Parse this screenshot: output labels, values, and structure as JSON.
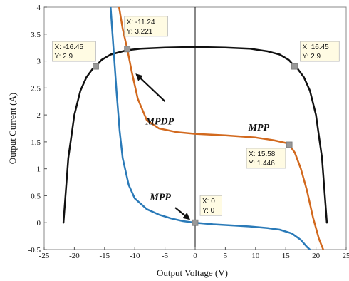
{
  "chart_data": {
    "type": "line",
    "title": "",
    "xlabel": "Output Voltage (V)",
    "ylabel": "Output Current (A)",
    "xlim": [
      -25,
      25
    ],
    "ylim": [
      -0.5,
      4
    ],
    "xticks": [
      "-25",
      "-20",
      "-15",
      "-10",
      "-5",
      "0",
      "5",
      "10",
      "15",
      "20",
      "25"
    ],
    "yticks": [
      "-0.5",
      "0",
      "0.5",
      "1",
      "1.5",
      "2",
      "2.5",
      "3",
      "3.5",
      "4"
    ],
    "grid": false,
    "legend": "none",
    "series": [
      {
        "color": "#111111",
        "x": [
          -21.8,
          -21.0,
          -20.0,
          -19.0,
          -18.0,
          -17.0,
          -16.45,
          -15.5,
          -14.0,
          -12.0,
          -11.24,
          -9.0,
          -5.0,
          0.0,
          5.0,
          9.0,
          12.0,
          14.0,
          15.5,
          16.45,
          17.0,
          18.0,
          19.0,
          20.0,
          21.0,
          21.8
        ],
        "y": [
          0.0,
          1.2,
          2.0,
          2.45,
          2.7,
          2.85,
          2.9,
          3.02,
          3.12,
          3.18,
          3.2,
          3.23,
          3.25,
          3.26,
          3.25,
          3.23,
          3.18,
          3.12,
          3.02,
          2.9,
          2.85,
          2.7,
          2.45,
          2.0,
          1.2,
          0.0
        ]
      },
      {
        "color": "#d2691e",
        "x": [
          -12.6,
          -12.0,
          -11.24,
          -10.5,
          -9.5,
          -8.0,
          -6.0,
          -3.0,
          0.0,
          5.0,
          10.0,
          13.0,
          15.0,
          15.58,
          16.5,
          17.5,
          18.5,
          19.5,
          20.5,
          21.2
        ],
        "y": [
          4.0,
          3.6,
          3.221,
          2.8,
          2.3,
          1.9,
          1.75,
          1.68,
          1.65,
          1.62,
          1.58,
          1.53,
          1.48,
          1.446,
          1.3,
          1.0,
          0.6,
          0.1,
          -0.3,
          -0.5
        ]
      },
      {
        "color": "#2a7ab8",
        "x": [
          -14.0,
          -13.5,
          -13.0,
          -12.5,
          -12.0,
          -11.0,
          -10.0,
          -8.0,
          -6.0,
          -4.0,
          -2.0,
          0.0,
          3.0,
          6.0,
          9.0,
          12.0,
          14.0,
          16.0,
          17.5,
          18.5,
          19.0
        ],
        "y": [
          4.0,
          3.2,
          2.4,
          1.7,
          1.2,
          0.7,
          0.45,
          0.25,
          0.15,
          0.08,
          0.03,
          0.0,
          -0.03,
          -0.05,
          -0.07,
          -0.1,
          -0.13,
          -0.2,
          -0.32,
          -0.45,
          -0.5
        ]
      }
    ],
    "datatips": [
      {
        "x": -16.45,
        "y": 2.9,
        "line1": "X: -16.45",
        "line2": "Y: 2.9"
      },
      {
        "x": -11.24,
        "y": 3.221,
        "line1": "X: -11.24",
        "line2": "Y: 3.221"
      },
      {
        "x": 16.45,
        "y": 2.9,
        "line1": "X: 16.45",
        "line2": "Y: 2.9"
      },
      {
        "x": 15.58,
        "y": 1.446,
        "line1": "X: 15.58",
        "line2": "Y: 1.446"
      },
      {
        "x": 0,
        "y": 0,
        "line1": "X: 0",
        "line2": "Y: 0"
      }
    ],
    "annotations": [
      {
        "text": "MPDP",
        "x": -8.2,
        "y": 1.82,
        "arrow_from": [
          -5.0,
          2.25
        ],
        "arrow_to": [
          -9.7,
          2.75
        ]
      },
      {
        "text": "MPP",
        "x": 8.8,
        "y": 1.71,
        "arrow_from": [
          13.0,
          1.38
        ],
        "arrow_to": [
          14.8,
          1.05
        ]
      },
      {
        "text": "MPP",
        "x": -7.5,
        "y": 0.42,
        "arrow_from": [
          -3.3,
          0.28
        ],
        "arrow_to": [
          -1.0,
          0.07
        ]
      }
    ],
    "zero_line": {
      "x": 0
    }
  }
}
